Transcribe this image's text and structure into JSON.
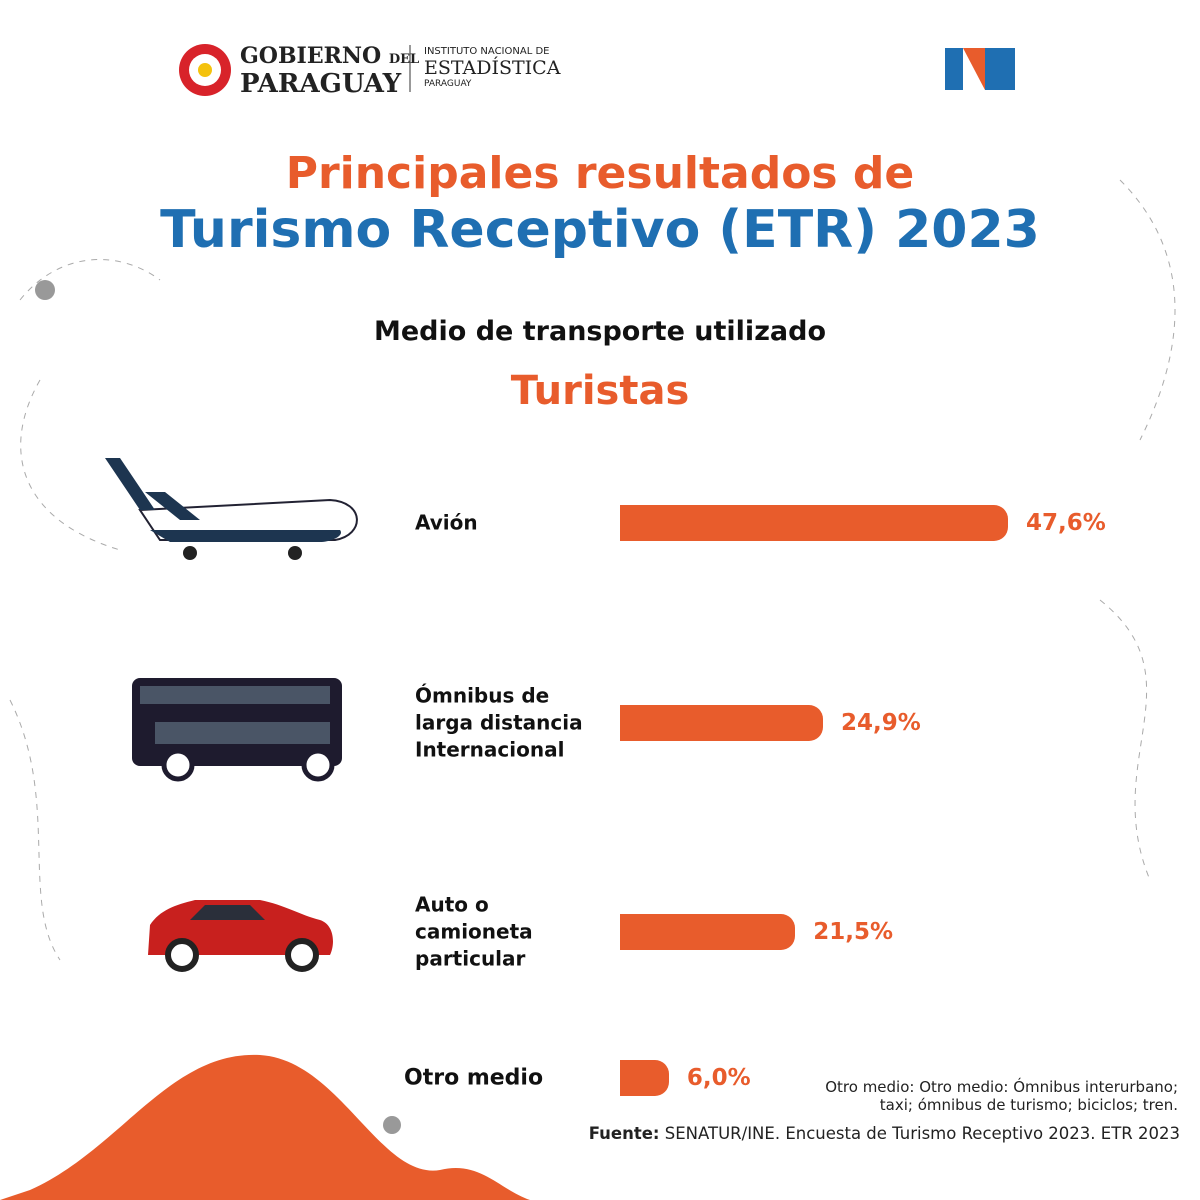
{
  "header": {
    "gov_line1": "GOBIERNO",
    "gov_del": "DEL",
    "gov_line2": "PARAGUAY",
    "ine_line1": "INSTITUTO NACIONAL DE",
    "ine_line2": "ESTADÍSTICA",
    "ine_line3": "PARAGUAY",
    "logo": "NE"
  },
  "chart_data": {
    "type": "bar",
    "orientation": "horizontal",
    "title": "Principales resultados de",
    "title_line2": "Turismo Receptivo (ETR) 2023",
    "subtitle": "Medio de transporte utilizado",
    "subtitle2": "Turistas",
    "categories": [
      "Avión",
      "Ómnibus de larga distancia Internacional",
      "Auto o camioneta particular",
      "Otro medio"
    ],
    "values": [
      47.6,
      24.9,
      21.5,
      6.0
    ],
    "value_labels": [
      "47,6%",
      "24,9%",
      "21,5%",
      "6,0%"
    ],
    "color": "#e85c2c",
    "note": "Otro medio: Otro medio: Ómnibus interurbano; taxi; ómnibus de turismo; biciclos; tren.",
    "source_label": "Fuente:",
    "source": "SENATUR/INE. Encuesta de Turismo Receptivo 2023. ETR 2023"
  }
}
